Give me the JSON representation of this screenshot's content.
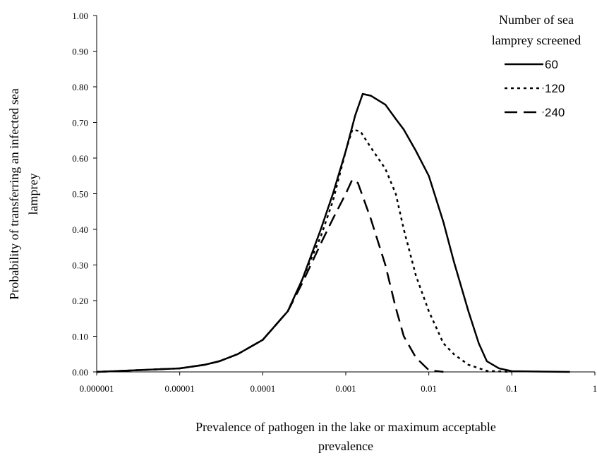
{
  "chart_data": {
    "type": "line",
    "y_label": [
      "Probability of transferring an infected sea",
      "lamprey"
    ],
    "x_label": [
      "Prevalence of pathogen in the lake or maximum acceptable",
      "prevalence"
    ],
    "legend_title": [
      "Number of sea",
      "lamprey screened"
    ],
    "x_log": true,
    "xlim": [
      1e-06,
      1
    ],
    "xticks": [
      1e-06,
      1e-05,
      0.0001,
      0.001,
      0.01,
      0.1,
      1
    ],
    "ylim": [
      0,
      1
    ],
    "yticks": [
      {
        "value": 0,
        "label": "0.00"
      },
      {
        "value": 0.1,
        "label": "0.10"
      },
      {
        "value": 0.2,
        "label": "0.20"
      },
      {
        "value": 0.3,
        "label": "0.30"
      },
      {
        "value": 0.4,
        "label": "0.40"
      },
      {
        "value": 0.5,
        "label": "0.50"
      },
      {
        "value": 0.6,
        "label": "0.60"
      },
      {
        "value": 0.7,
        "label": "0.70"
      },
      {
        "value": 0.8,
        "label": "0.80"
      },
      {
        "value": 0.9,
        "label": "0.90"
      },
      {
        "value": 1,
        "label": "1.00"
      }
    ],
    "grid": false,
    "series": [
      {
        "name": "60",
        "color": "#000000",
        "line_style": "solid",
        "x": [
          1e-06,
          2e-06,
          5e-06,
          1e-05,
          2e-05,
          3e-05,
          5e-05,
          0.0001,
          0.0002,
          0.0003,
          0.0005,
          0.0007,
          0.001,
          0.0013,
          0.0016,
          0.002,
          0.003,
          0.004,
          0.005,
          0.007,
          0.01,
          0.015,
          0.02,
          0.03,
          0.04,
          0.05,
          0.07,
          0.1,
          0.5
        ],
        "values": [
          0,
          0.003,
          0.007,
          0.01,
          0.02,
          0.03,
          0.05,
          0.09,
          0.17,
          0.26,
          0.4,
          0.5,
          0.62,
          0.72,
          0.78,
          0.775,
          0.75,
          0.71,
          0.68,
          0.62,
          0.55,
          0.42,
          0.31,
          0.17,
          0.08,
          0.03,
          0.01,
          0.002,
          0
        ]
      },
      {
        "name": "120",
        "color": "#000000",
        "line_style": "dotted",
        "x": [
          1e-06,
          2e-06,
          5e-06,
          1e-05,
          2e-05,
          3e-05,
          5e-05,
          0.0001,
          0.0002,
          0.0003,
          0.0005,
          0.0007,
          0.001,
          0.0012,
          0.0015,
          0.002,
          0.003,
          0.004,
          0.005,
          0.007,
          0.01,
          0.015,
          0.02,
          0.03,
          0.05,
          0.1
        ],
        "values": [
          0,
          0.003,
          0.007,
          0.01,
          0.02,
          0.03,
          0.05,
          0.09,
          0.17,
          0.26,
          0.38,
          0.48,
          0.62,
          0.68,
          0.675,
          0.63,
          0.57,
          0.5,
          0.4,
          0.27,
          0.17,
          0.08,
          0.05,
          0.02,
          0.003,
          0
        ]
      },
      {
        "name": "240",
        "color": "#000000",
        "line_style": "dashed",
        "x": [
          1e-06,
          2e-06,
          5e-06,
          1e-05,
          2e-05,
          3e-05,
          5e-05,
          0.0001,
          0.0002,
          0.0003,
          0.0005,
          0.0007,
          0.001,
          0.0012,
          0.0014,
          0.002,
          0.003,
          0.004,
          0.005,
          0.007,
          0.01,
          0.015
        ],
        "values": [
          0,
          0.003,
          0.007,
          0.01,
          0.02,
          0.03,
          0.05,
          0.09,
          0.17,
          0.25,
          0.36,
          0.43,
          0.5,
          0.54,
          0.53,
          0.43,
          0.3,
          0.18,
          0.1,
          0.04,
          0.005,
          0
        ]
      }
    ]
  }
}
